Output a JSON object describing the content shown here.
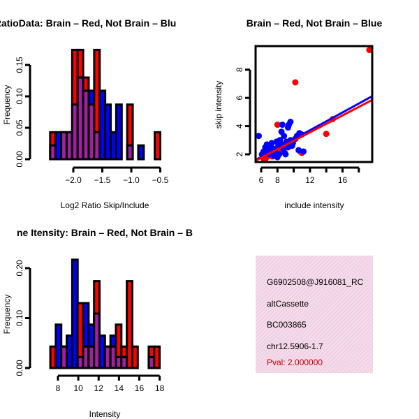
{
  "chart_data": [
    {
      "type": "bar",
      "title": "RatioData: Brain – Red, Not Brain – Blu",
      "xlabel": "Log2 Ratio Skip/Include",
      "ylabel": "Frequency",
      "xticks": [
        "-2.0",
        "-1.5",
        "-1.0",
        "-0.5"
      ],
      "yticks": [
        "0.00",
        "0.05",
        "0.10",
        "0.15"
      ],
      "bin_start": -2.4,
      "bin_width": 0.095,
      "ylim": [
        0,
        0.174
      ],
      "series": [
        {
          "name": "Brain",
          "color": "#ff0000",
          "values": [
            0.043,
            0,
            0.043,
            0.043,
            0.174,
            0.174,
            0.13,
            0.087,
            0.174,
            0,
            0,
            0,
            0,
            0,
            0.087,
            0,
            0,
            0,
            0,
            0.043
          ]
        },
        {
          "name": "Not Brain",
          "color": "#0000ff",
          "values": [
            0.022,
            0.043,
            0.043,
            0.043,
            0.087,
            0.13,
            0.109,
            0.109,
            0.043,
            0.109,
            0.087,
            0.043,
            0.087,
            0,
            0.022,
            0,
            0.022,
            0,
            0,
            0
          ]
        }
      ],
      "overlap_color": "#a020a0"
    },
    {
      "type": "scatter",
      "title": "Brain – Red, Not Brain – Blue",
      "xlabel": "include intensity",
      "ylabel": "skip intensity",
      "xticks": [
        "6",
        "8",
        "12",
        "16"
      ],
      "yticks": [
        "2",
        "4",
        "6",
        "8"
      ],
      "xlim": [
        5.3,
        19.6
      ],
      "ylim": [
        1.46,
        9.67
      ],
      "series": [
        {
          "name": "Brain",
          "color": "#ff0000",
          "points": [
            [
              19.3,
              9.4
            ],
            [
              10.2,
              7.1
            ],
            [
              14,
              3.45
            ],
            [
              14.8,
              4.5
            ],
            [
              8,
              4.1
            ],
            [
              6.3,
              1.7
            ],
            [
              6.6,
              1.75
            ],
            [
              7.1,
              1.9
            ],
            [
              7.4,
              1.85
            ],
            [
              6.9,
              2.1
            ],
            [
              8.4,
              2.3
            ],
            [
              9.5,
              2.6
            ],
            [
              10.8,
              2.2
            ],
            [
              11,
              2.1
            ],
            [
              6.5,
              1.65
            ]
          ],
          "fit": {
            "slope": 0.3,
            "intercept": -0.04
          }
        },
        {
          "name": "Not Brain",
          "color": "#0000ff",
          "points": [
            [
              5.7,
              3.3
            ],
            [
              6.3,
              2.2
            ],
            [
              6.5,
              2.5
            ],
            [
              6.7,
              2.7
            ],
            [
              6.9,
              2.3
            ],
            [
              7.1,
              2.6
            ],
            [
              7.3,
              2.8
            ],
            [
              7.5,
              2.4
            ],
            [
              7.7,
              2.2
            ],
            [
              7.9,
              2.9
            ],
            [
              8.1,
              2.6
            ],
            [
              8.3,
              3.0
            ],
            [
              8.5,
              2.7
            ],
            [
              8.7,
              2.4
            ],
            [
              8.9,
              2.1
            ],
            [
              8.2,
              2.0
            ],
            [
              8.5,
              3.6
            ],
            [
              8.6,
              4.1
            ],
            [
              8.8,
              3.3
            ],
            [
              9.3,
              3.9
            ],
            [
              9.6,
              4.3
            ],
            [
              9.4,
              4.1
            ],
            [
              9.1,
              2.9
            ],
            [
              9.3,
              2.5
            ],
            [
              9.6,
              3.0
            ],
            [
              9.9,
              2.8
            ],
            [
              10.2,
              3.1
            ],
            [
              10.4,
              3.3
            ],
            [
              10.7,
              3.5
            ],
            [
              11,
              3.4
            ],
            [
              10.6,
              2.3
            ],
            [
              11.2,
              2.2
            ],
            [
              6.1,
              2.0
            ],
            [
              7,
              2.0
            ],
            [
              7.6,
              1.9
            ],
            [
              8.0,
              1.8
            ],
            [
              9.0,
              2.0
            ],
            [
              9.8,
              2.6
            ]
          ],
          "fit": {
            "slope": 0.315,
            "intercept": -0.07
          }
        }
      ]
    },
    {
      "type": "bar",
      "title": "ne Itensity: Brain – Red, Not Brain – B",
      "xlabel": "Intensity",
      "ylabel": "Frequency",
      "xticks": [
        "8",
        "10",
        "12",
        "14",
        "16",
        "18"
      ],
      "yticks": [
        "0.00",
        "0.10",
        "0.20"
      ],
      "bin_start": 7.25,
      "bin_width": 0.5375,
      "ylim": [
        0,
        0.217
      ],
      "series": [
        {
          "name": "Brain",
          "color": "#ff0000",
          "values": [
            0.043,
            0,
            0.043,
            0,
            0,
            0.13,
            0.043,
            0.043,
            0.174,
            0,
            0.043,
            0.043,
            0.087,
            0.043,
            0.174,
            0.043,
            0,
            0,
            0.043,
            0.043
          ]
        },
        {
          "name": "Not Brain",
          "color": "#0000ff",
          "values": [
            0,
            0.087,
            0.043,
            0.065,
            0.217,
            0.022,
            0.13,
            0.087,
            0.109,
            0.065,
            0.043,
            0.065,
            0.022,
            0.022,
            0,
            0,
            0,
            0,
            0.022,
            0
          ]
        }
      ],
      "overlap_color": "#a020a0"
    }
  ],
  "info": {
    "id": "G6902508@J916081_RC",
    "type": "altCassette",
    "accession": "BC003865",
    "location": "chr12.5906-1.7",
    "pval": "Pval: 2.000000",
    "pval_color": "#c00000"
  }
}
